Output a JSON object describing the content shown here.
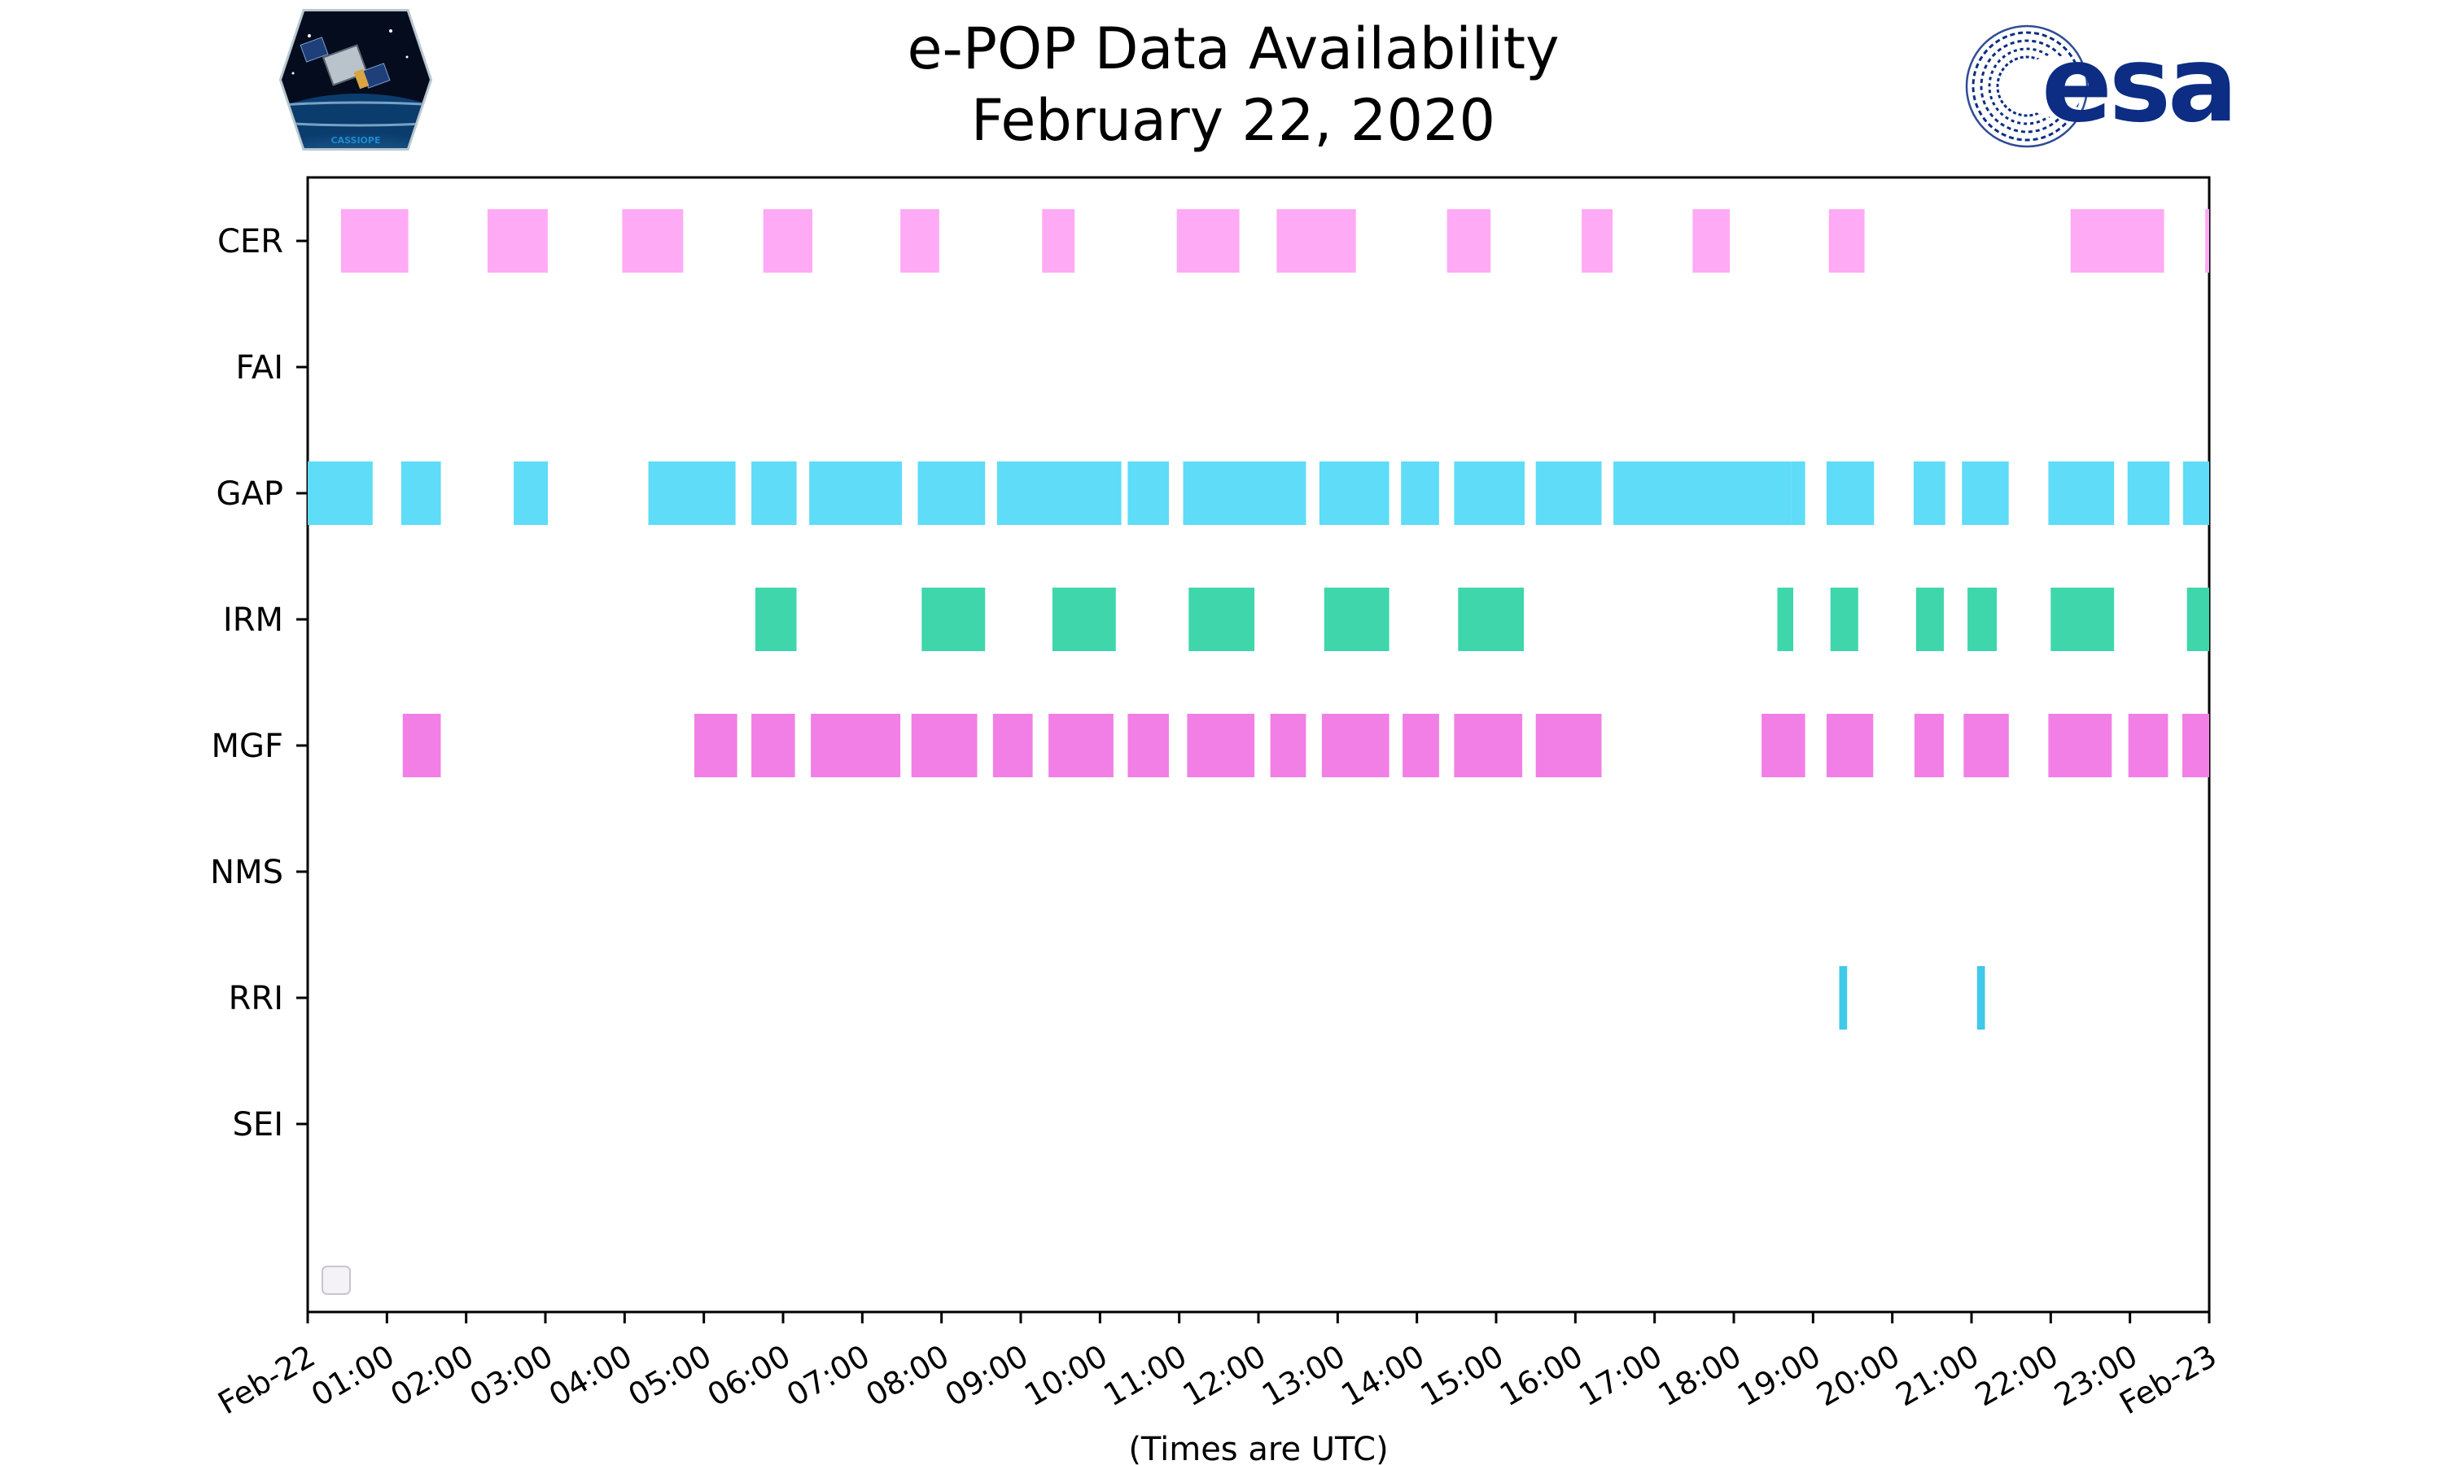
{
  "chart_data": {
    "type": "timeline",
    "title": "e-POP Data Availability",
    "subtitle": "February 22, 2020",
    "xlabel": "(Times are UTC)",
    "ylabel": "",
    "x_range_hours": [
      0,
      24
    ],
    "x_ticks": [
      "Feb-22",
      "01:00",
      "02:00",
      "03:00",
      "04:00",
      "05:00",
      "06:00",
      "07:00",
      "08:00",
      "09:00",
      "10:00",
      "11:00",
      "12:00",
      "13:00",
      "14:00",
      "15:00",
      "16:00",
      "17:00",
      "18:00",
      "19:00",
      "20:00",
      "21:00",
      "22:00",
      "23:00",
      "Feb-23"
    ],
    "grid": false,
    "legend": "empty box, bottom-left",
    "categories": [
      "CER",
      "FAI",
      "GAP",
      "IRM",
      "MGF",
      "NMS",
      "RRI",
      "SEI"
    ],
    "series": [
      {
        "name": "CER",
        "color": "#ffaaf5",
        "intervals": [
          [
            0.42,
            1.27
          ],
          [
            2.27,
            3.03
          ],
          [
            3.97,
            4.74
          ],
          [
            5.75,
            6.37
          ],
          [
            7.48,
            7.97
          ],
          [
            9.27,
            9.68
          ],
          [
            10.97,
            11.76
          ],
          [
            12.23,
            13.23
          ],
          [
            14.38,
            14.93
          ],
          [
            16.08,
            16.47
          ],
          [
            17.48,
            17.95
          ],
          [
            19.2,
            19.65
          ],
          [
            22.25,
            23.43
          ],
          [
            23.95,
            24.0
          ]
        ]
      },
      {
        "name": "FAI",
        "color": "#c0c0c0",
        "intervals": []
      },
      {
        "name": "GAP",
        "color": "#5fdcf7",
        "intervals": [
          [
            0.0,
            0.82
          ],
          [
            1.18,
            1.68
          ],
          [
            2.6,
            3.03
          ],
          [
            4.3,
            5.4
          ],
          [
            5.6,
            6.17
          ],
          [
            6.33,
            7.5
          ],
          [
            7.7,
            8.55
          ],
          [
            8.7,
            10.27
          ],
          [
            10.35,
            10.87
          ],
          [
            11.05,
            12.6
          ],
          [
            12.77,
            13.65
          ],
          [
            13.8,
            14.28
          ],
          [
            14.47,
            15.36
          ],
          [
            15.5,
            16.33
          ],
          [
            16.48,
            18.72
          ],
          [
            18.72,
            18.9
          ],
          [
            19.17,
            19.77
          ],
          [
            20.27,
            20.67
          ],
          [
            20.88,
            21.47
          ],
          [
            21.97,
            22.8
          ],
          [
            22.97,
            23.5
          ],
          [
            23.67,
            24.0
          ]
        ]
      },
      {
        "name": "IRM",
        "color": "#3fd6ac",
        "intervals": [
          [
            5.65,
            6.17
          ],
          [
            7.75,
            8.55
          ],
          [
            9.4,
            10.2
          ],
          [
            11.12,
            11.95
          ],
          [
            12.83,
            13.65
          ],
          [
            14.52,
            15.35
          ],
          [
            18.55,
            18.75
          ],
          [
            19.22,
            19.57
          ],
          [
            20.3,
            20.65
          ],
          [
            20.95,
            21.32
          ],
          [
            22.0,
            22.8
          ],
          [
            23.72,
            24.0
          ]
        ]
      },
      {
        "name": "MGF",
        "color": "#f27fe5",
        "intervals": [
          [
            1.2,
            1.68
          ],
          [
            4.88,
            5.42
          ],
          [
            5.6,
            6.15
          ],
          [
            6.35,
            7.48
          ],
          [
            7.62,
            8.45
          ],
          [
            8.65,
            9.15
          ],
          [
            9.35,
            10.17
          ],
          [
            10.35,
            10.87
          ],
          [
            11.1,
            11.95
          ],
          [
            12.15,
            12.6
          ],
          [
            12.8,
            13.65
          ],
          [
            13.82,
            14.28
          ],
          [
            14.47,
            15.33
          ],
          [
            15.5,
            16.33
          ],
          [
            18.35,
            18.9
          ],
          [
            19.17,
            19.76
          ],
          [
            20.28,
            20.65
          ],
          [
            20.9,
            21.47
          ],
          [
            21.97,
            22.77
          ],
          [
            22.98,
            23.48
          ],
          [
            23.66,
            24.0
          ]
        ]
      },
      {
        "name": "NMS",
        "color": "#c0c0c0",
        "intervals": []
      },
      {
        "name": "RRI",
        "color": "#41c9ea",
        "intervals": [
          [
            19.33,
            19.43
          ],
          [
            21.07,
            21.17
          ]
        ]
      },
      {
        "name": "SEI",
        "color": "#c0c0c0",
        "intervals": []
      }
    ]
  },
  "logos": {
    "cassiope": {
      "label": "CASSIOPE",
      "icon": "cassiope-mission-patch"
    },
    "esa": {
      "label": "esa",
      "icon": "esa-logo",
      "color": "#0c2d83"
    }
  }
}
